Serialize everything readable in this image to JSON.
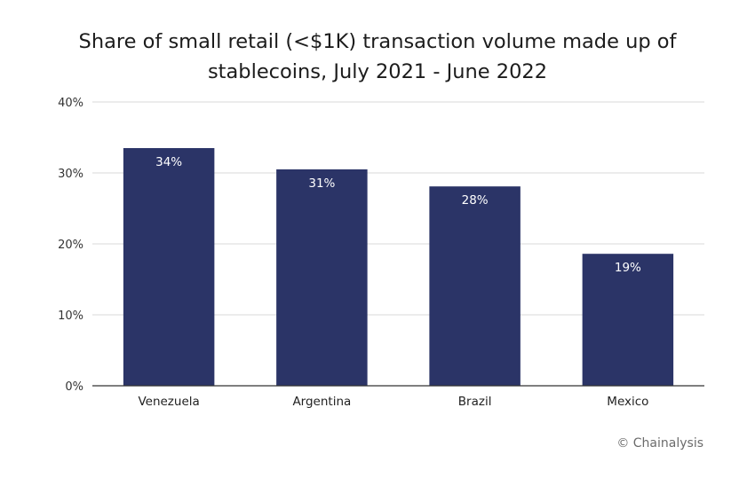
{
  "chart_data": {
    "type": "bar",
    "title_lines": [
      "Share of small retail (<$1K) transaction volume made up of",
      "stablecoins, July 2021 - June 2022"
    ],
    "categories": [
      "Venezuela",
      "Argentina",
      "Brazil",
      "Mexico"
    ],
    "values": [
      33.5,
      30.5,
      28.1,
      18.6
    ],
    "data_labels": [
      "34%",
      "31%",
      "28%",
      "19%"
    ],
    "y_ticks": [
      "0%",
      "10%",
      "20%",
      "30%",
      "40%"
    ],
    "y_tick_values": [
      0,
      10,
      20,
      30,
      40
    ],
    "ylim": [
      0,
      40
    ],
    "xlabel": "",
    "ylabel": "",
    "grid": true,
    "legend": "none",
    "bar_color": "#2b3467",
    "label_color": "#ffffff",
    "grid_color": "#d9d9d9",
    "axis_color": "#333333"
  },
  "credit": "© Chainalysis"
}
